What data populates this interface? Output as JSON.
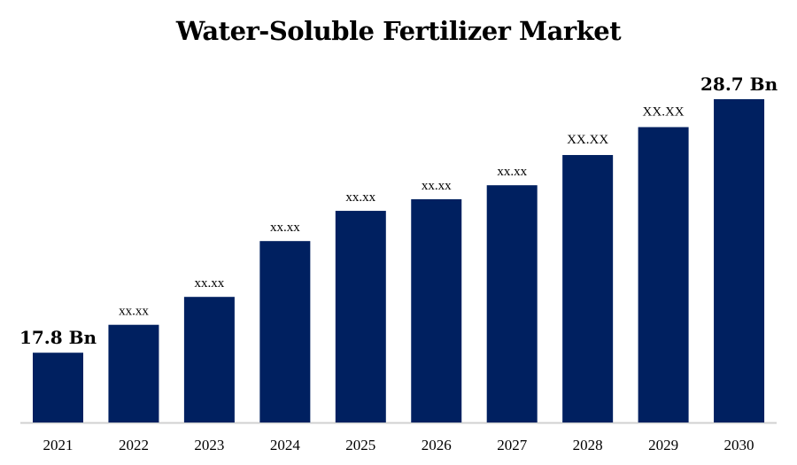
{
  "chart_data": {
    "type": "bar",
    "title": "Water-Soluble Fertilizer Market",
    "xlabel": "",
    "ylabel": "",
    "categories": [
      "2021",
      "2022",
      "2023",
      "2024",
      "2025",
      "2026",
      "2027",
      "2028",
      "2029",
      "2030"
    ],
    "values": [
      17.8,
      19.0,
      20.2,
      22.6,
      23.9,
      24.4,
      25.0,
      26.3,
      27.5,
      28.7
    ],
    "data_labels": [
      "17.8 Bn",
      "xx.xx",
      "xx.xx",
      "xx.xx",
      "xx.xx",
      "xx.xx",
      "xx.xx",
      "XX.XX",
      "XX.XX",
      "28.7 Bn"
    ],
    "ylim": [
      14.8,
      28.7
    ],
    "grid": false,
    "legend": "none",
    "bar_color": "#002060",
    "axis_color": "#d0d0d0"
  }
}
